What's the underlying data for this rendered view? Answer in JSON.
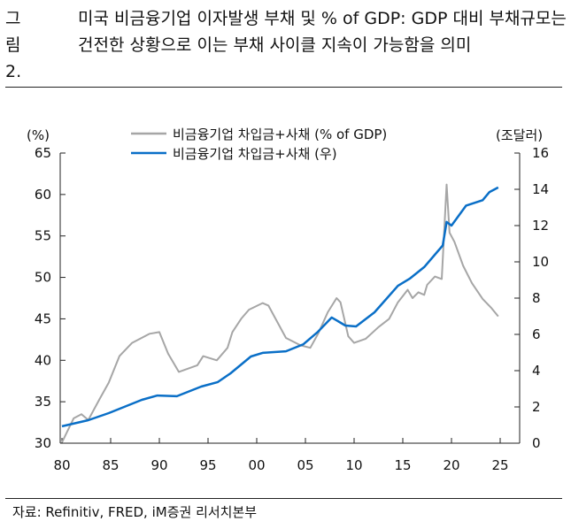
{
  "header": {
    "figure_number": "그림2.",
    "title": "미국 비금융기업 이자발생 부채 및 % of GDP: GDP 대비 부채규모는 건전한 상황으로 이는 부채 사이클 지속이 가능함을 의미"
  },
  "footer": {
    "source": "자료: Refinitiv, FRED, iM증권 리서치본부"
  },
  "colors": {
    "gdp_ratio": "#a6a6a6",
    "level": "#0a6fc7"
  },
  "chart_data": {
    "type": "line",
    "left_axis": {
      "unit_label": "(%)",
      "ylim": [
        30,
        65
      ],
      "ticks": [
        30,
        35,
        40,
        45,
        50,
        55,
        60,
        65
      ]
    },
    "right_axis": {
      "unit_label": "(조달러)",
      "ylim": [
        0,
        16
      ],
      "ticks": [
        0,
        2,
        4,
        6,
        8,
        10,
        12,
        14,
        16
      ]
    },
    "x_axis": {
      "xlim": [
        1980,
        2025
      ],
      "ticks": [
        1980,
        1985,
        1990,
        1995,
        2000,
        2005,
        2010,
        2015,
        2020,
        2025
      ],
      "tick_labels": [
        "80",
        "85",
        "90",
        "95",
        "00",
        "05",
        "10",
        "15",
        "20",
        "25"
      ]
    },
    "legend_placement": "top-center",
    "grid": false,
    "series": [
      {
        "name": "비금융기업 차입금+사채 (% of GDP)",
        "axis": "left",
        "x": [
          1980,
          1981.2,
          1982,
          1982.7,
          1983.9,
          1984.8,
          1985.9,
          1987.2,
          1989,
          1990,
          1990.9,
          1992,
          1993.9,
          1994.5,
          1995.9,
          1997,
          1997.5,
          1998.4,
          1999.2,
          2000.6,
          2001.2,
          2001.8,
          2003,
          2004.5,
          2005.5,
          2006.3,
          2007.3,
          2008.2,
          2008.6,
          2009.4,
          2010,
          2011.2,
          2012.5,
          2013.6,
          2014.5,
          2015.5,
          2016,
          2016.6,
          2017.2,
          2017.5,
          2018.3,
          2019,
          2019.5,
          2019.8,
          2020.3,
          2021.2,
          2022.1,
          2023.2,
          2024.1,
          2024.8
        ],
        "y": [
          30.1,
          33.0,
          33.5,
          32.8,
          35.4,
          37.3,
          40.5,
          42.1,
          43.2,
          43.4,
          40.8,
          38.6,
          39.4,
          40.5,
          40.0,
          41.5,
          43.4,
          45.0,
          46.1,
          46.9,
          46.6,
          45.3,
          42.7,
          41.8,
          41.5,
          43.2,
          45.8,
          47.5,
          47.0,
          42.9,
          42.1,
          42.6,
          44.0,
          45.0,
          47.0,
          48.5,
          47.5,
          48.2,
          47.9,
          49.1,
          50.1,
          49.8,
          61.2,
          55.4,
          54.3,
          51.4,
          49.3,
          47.4,
          46.3,
          45.3
        ]
      },
      {
        "name": "비금융기업 차입금+사채 (우)",
        "axis": "right",
        "x": [
          1980,
          1982.7,
          1984.8,
          1988.2,
          1989.8,
          1991.8,
          1994.3,
          1996,
          1997.3,
          1999.4,
          2000.6,
          2003,
          2004.8,
          2006.3,
          2007.7,
          2009.1,
          2010.2,
          2012.1,
          2014.5,
          2015.7,
          2017.2,
          2019.1,
          2019.5,
          2020,
          2021.5,
          2023.2,
          2023.9,
          2024.8
        ],
        "y": [
          0.93,
          1.27,
          1.66,
          2.39,
          2.63,
          2.59,
          3.12,
          3.37,
          3.85,
          4.78,
          4.98,
          5.07,
          5.46,
          6.15,
          6.93,
          6.49,
          6.44,
          7.22,
          8.68,
          9.07,
          9.71,
          10.9,
          12.2,
          12.0,
          13.1,
          13.4,
          13.85,
          14.1
        ]
      }
    ]
  }
}
